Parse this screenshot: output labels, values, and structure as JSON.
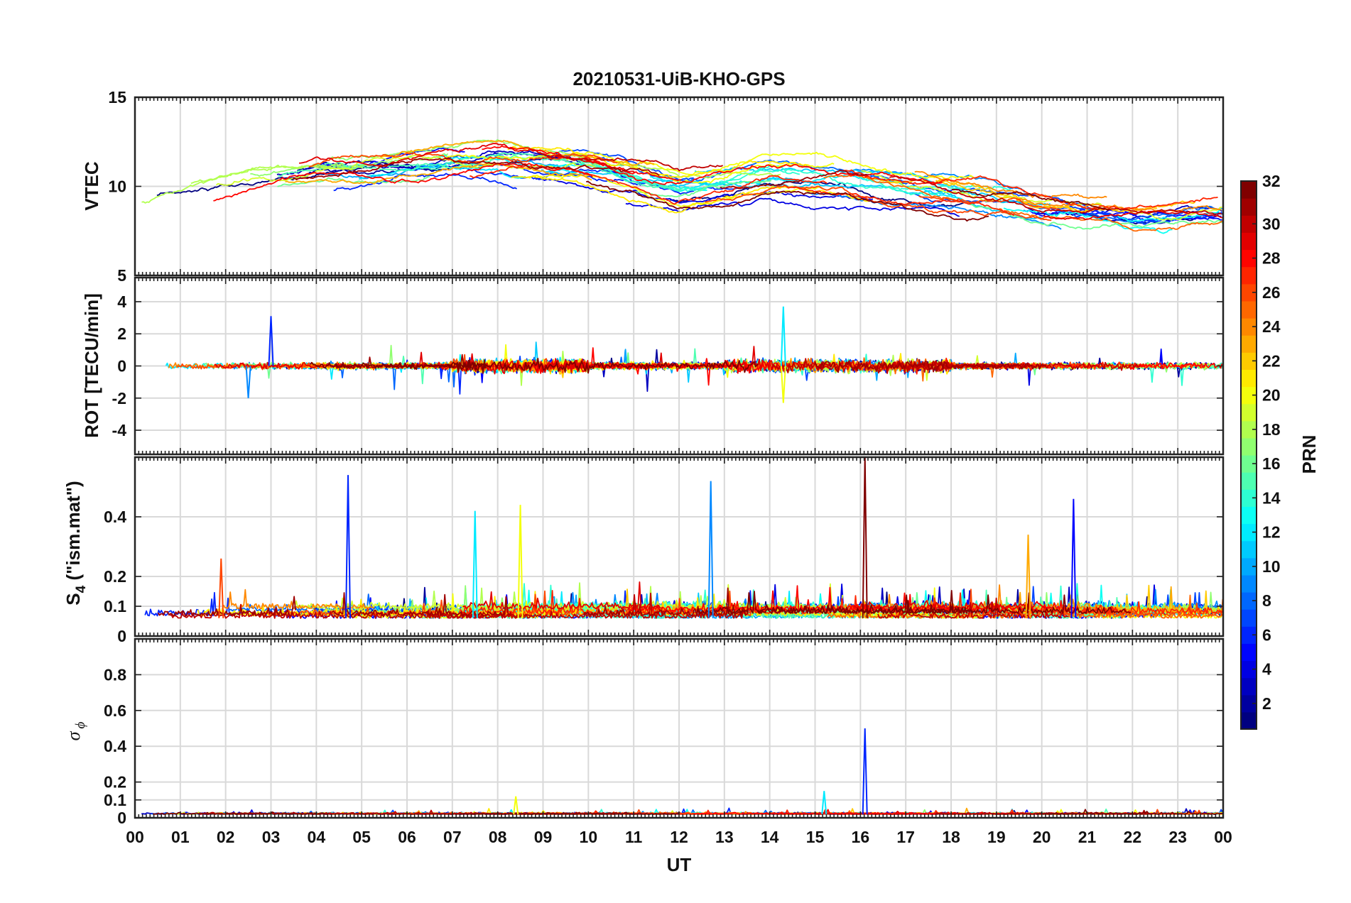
{
  "chart_data": [
    {
      "type": "line",
      "title": "20210531-UiB-KHO-GPS",
      "ylabel": "VTEC",
      "ylim": [
        5,
        15
      ],
      "yticks": [
        5,
        10,
        15
      ],
      "grid": true,
      "series_style": "many PRN traces colored by PRN (jet colormap)",
      "envelope": {
        "x_hours": [
          0,
          2,
          4,
          6,
          8,
          10,
          12,
          14,
          16,
          18,
          20,
          22,
          24
        ],
        "mean": [
          8.8,
          9.8,
          10.8,
          11.1,
          11.4,
          11.0,
          9.9,
          10.6,
          10.3,
          9.6,
          8.7,
          8.2,
          8.5
        ]
      }
    },
    {
      "type": "line",
      "ylabel": "ROT [TECU/min]",
      "ylim": [
        -5.5,
        5.5
      ],
      "yticks": [
        -4,
        -2,
        0,
        2,
        4
      ],
      "grid": true,
      "notable_spikes": [
        {
          "x_hour": 3.0,
          "value": 3.1
        },
        {
          "x_hour": 14.3,
          "value": 3.7
        },
        {
          "x_hour": 14.3,
          "value": -2.3
        },
        {
          "x_hour": 2.5,
          "value": -2.0
        }
      ]
    },
    {
      "type": "line",
      "ylabel": "S4 (\"ism.mat\")",
      "ylabel_main": "S",
      "ylabel_sub": "4",
      "ylabel_rest": " (\"ism.mat\")",
      "ylim": [
        0,
        0.6
      ],
      "yticks": [
        0,
        0.1,
        0.2,
        0.4
      ],
      "grid": true,
      "notable_spikes": [
        {
          "x_hour": 4.7,
          "value": 0.54
        },
        {
          "x_hour": 7.5,
          "value": 0.42
        },
        {
          "x_hour": 8.5,
          "value": 0.44
        },
        {
          "x_hour": 12.7,
          "value": 0.52
        },
        {
          "x_hour": 16.1,
          "value": 0.6
        },
        {
          "x_hour": 19.7,
          "value": 0.34
        },
        {
          "x_hour": 20.7,
          "value": 0.46
        },
        {
          "x_hour": 1.9,
          "value": 0.26
        }
      ]
    },
    {
      "type": "line",
      "ylabel": "σ ϕ",
      "ylabel_main": "σ",
      "ylabel_sub": "ϕ",
      "ylim": [
        0,
        1
      ],
      "yticks": [
        0,
        0.1,
        0.2,
        0.4,
        0.6,
        0.8
      ],
      "grid": true,
      "xlabel": "UT",
      "xticks": [
        "00",
        "01",
        "02",
        "03",
        "04",
        "05",
        "06",
        "07",
        "08",
        "09",
        "10",
        "11",
        "12",
        "13",
        "14",
        "15",
        "16",
        "17",
        "18",
        "19",
        "20",
        "21",
        "22",
        "23",
        "00"
      ],
      "notable_spikes": [
        {
          "x_hour": 16.1,
          "value": 0.5
        },
        {
          "x_hour": 15.2,
          "value": 0.15
        },
        {
          "x_hour": 8.4,
          "value": 0.12
        }
      ]
    }
  ],
  "colorbar": {
    "label": "PRN",
    "range": [
      1,
      32
    ],
    "ticks": [
      2,
      4,
      6,
      8,
      10,
      12,
      14,
      16,
      18,
      20,
      22,
      24,
      26,
      28,
      30,
      32
    ],
    "colormap": "jet"
  }
}
